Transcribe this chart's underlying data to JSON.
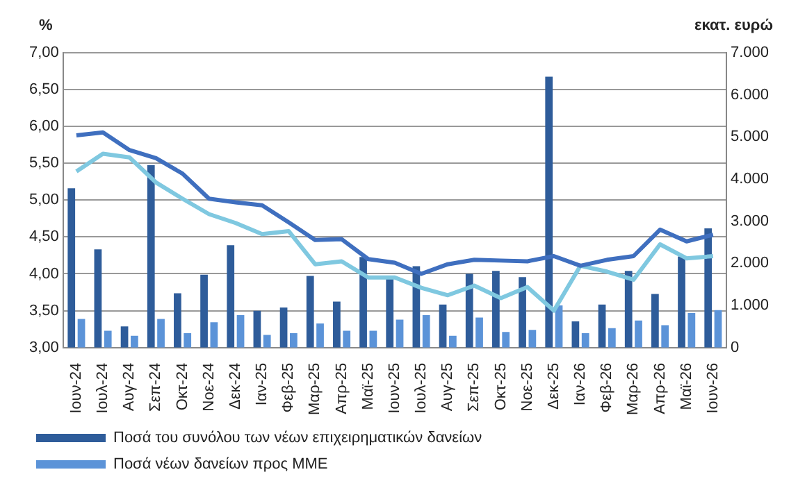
{
  "chart_data": {
    "type": "bar",
    "ylabel": "%",
    "y2label": "εκατ. ευρώ",
    "categories": [
      "Ιουν-24",
      "Ιουλ-24",
      "Αυγ-24",
      "Σεπ-24",
      "Οκτ-24",
      "Νοε-24",
      "Δεκ-24",
      "Ιαν-25",
      "Φεβ-25",
      "Μαρ-25",
      "Απρ-25",
      "Μαϊ-25",
      "Ιουν-25",
      "Ιουλ-25",
      "Αυγ-25",
      "Σεπ-25",
      "Οκτ-25",
      "Νοε-25",
      "Δεκ-25",
      "Ιαν-26",
      "Φεβ-26",
      "Μαρ-26",
      "Απρ-26",
      "Μαϊ-26",
      "Ιουν-26"
    ],
    "series": [
      {
        "name": "Ποσά του συνόλου των νέων επιχειρηματικών δανείων",
        "axis": "y2",
        "color": "#2e5c9a",
        "values": [
          3780,
          2330,
          500,
          4330,
          1290,
          1730,
          2430,
          870,
          950,
          1700,
          1090,
          2150,
          1630,
          1930,
          1020,
          1750,
          1820,
          1670,
          6430,
          620,
          1020,
          1820,
          1270,
          2160,
          2830
        ]
      },
      {
        "name": "Ποσά νέων δανείων προς ΜΜΕ",
        "axis": "y2",
        "color": "#5b93d8",
        "values": [
          680,
          400,
          280,
          680,
          340,
          600,
          770,
          300,
          340,
          570,
          400,
          400,
          660,
          770,
          280,
          710,
          370,
          420,
          1000,
          340,
          460,
          640,
          530,
          820,
          890
        ]
      },
      {
        "type": "line",
        "color": "#3f6fbf",
        "values": [
          5.88,
          5.92,
          5.68,
          5.57,
          5.36,
          5.02,
          4.97,
          4.93,
          4.7,
          4.46,
          4.47,
          4.2,
          4.15,
          4.0,
          4.13,
          4.19,
          4.18,
          4.17,
          4.24,
          4.11,
          4.19,
          4.24,
          4.6,
          4.44,
          4.53
        ]
      },
      {
        "type": "line",
        "color": "#7fc8e0",
        "values": [
          5.39,
          5.63,
          5.58,
          5.24,
          5.02,
          4.81,
          4.69,
          4.54,
          4.58,
          4.13,
          4.17,
          3.95,
          3.95,
          3.81,
          3.71,
          3.84,
          3.67,
          3.82,
          3.5,
          4.11,
          4.03,
          3.92,
          4.4,
          4.21,
          4.24
        ]
      }
    ],
    "ylim": [
      3,
      7
    ],
    "yticks": [
      {
        "value": 3,
        "label": "3,00"
      },
      {
        "value": 3.5,
        "label": "3,50"
      },
      {
        "value": 4,
        "label": "4,00"
      },
      {
        "value": 4.5,
        "label": "4,50"
      },
      {
        "value": 5,
        "label": "5,00"
      },
      {
        "value": 5.5,
        "label": "5,50"
      },
      {
        "value": 6,
        "label": "6,00"
      },
      {
        "value": 6.5,
        "label": "6,50"
      },
      {
        "value": 7,
        "label": "7,00"
      }
    ],
    "y2lim": [
      0,
      7000
    ],
    "y2ticks": [
      0,
      {
        "value": 1000,
        "label": "1.000"
      },
      {
        "value": 2000,
        "label": "2.000"
      },
      {
        "value": 3000,
        "label": "3.000"
      },
      {
        "value": 4000,
        "label": "4.000"
      },
      {
        "value": 5000,
        "label": "5.000"
      },
      {
        "value": 6000,
        "label": "6.000"
      },
      {
        "value": 7000,
        "label": "7.000"
      }
    ],
    "grid": "y",
    "legend": "bottom",
    "marker": "none",
    "line_style": "solid"
  }
}
